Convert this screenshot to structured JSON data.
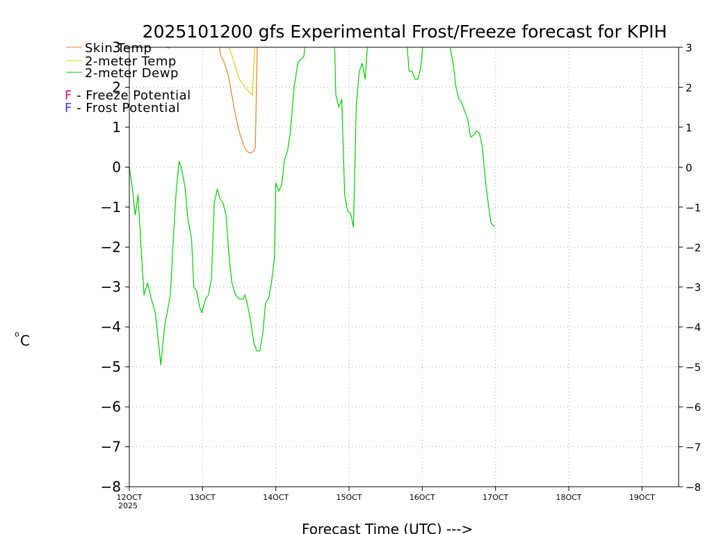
{
  "chart_data": {
    "type": "line",
    "title": "2025101200 gfs Experimental Frost/Freeze forecast for KPIH",
    "ylabel_prefix": "o",
    "ylabel": "C",
    "xlabel": "Forecast Time (UTC) --->",
    "ylim": [
      -8,
      3
    ],
    "xlim": [
      12,
      19.5
    ],
    "y_ticks_left": [
      "−8",
      "−7",
      "−6",
      "−5",
      "−4",
      "−3",
      "−2",
      "−1",
      "0",
      "1",
      "2",
      "3"
    ],
    "y_ticks_right": [
      "−8",
      "−7",
      "−6",
      "−5",
      "−4",
      "−3",
      "−2",
      "−1",
      "0",
      "1",
      "2",
      "3"
    ],
    "x_ticks": [
      {
        "x": 12,
        "label": "12OCT"
      },
      {
        "x": 13,
        "label": "13OCT"
      },
      {
        "x": 14,
        "label": "14OCT"
      },
      {
        "x": 15,
        "label": "15OCT"
      },
      {
        "x": 16,
        "label": "16OCT"
      },
      {
        "x": 17,
        "label": "17OCT"
      },
      {
        "x": 18,
        "label": "18OCT"
      },
      {
        "x": 19,
        "label": "19OCT"
      }
    ],
    "year_label": "2025",
    "legend": [
      {
        "name": "Skin Temp",
        "color": "#e8802a"
      },
      {
        "name": "2-meter Temp",
        "color": "#e8c800"
      },
      {
        "name": "2-meter Dewp",
        "color": "#00cc00"
      }
    ],
    "potential_legend": [
      {
        "marker": "F",
        "text": " - Freeze Potential",
        "color": "#c8148c"
      },
      {
        "marker": "F",
        "text": " - Frost Potential",
        "color": "#3c3cdc"
      }
    ],
    "series": [
      {
        "name": "Skin Temp",
        "color": "#e8802a",
        "points": [
          [
            12.45,
            3.3
          ],
          [
            12.5,
            3.0
          ],
          [
            12.55,
            2.98
          ],
          [
            12.6,
            3.3
          ],
          [
            13.2,
            3.3
          ],
          [
            13.25,
            2.8
          ],
          [
            13.3,
            2.6
          ],
          [
            13.35,
            2.3
          ],
          [
            13.4,
            1.8
          ],
          [
            13.45,
            1.3
          ],
          [
            13.5,
            0.9
          ],
          [
            13.55,
            0.6
          ],
          [
            13.6,
            0.4
          ],
          [
            13.65,
            0.35
          ],
          [
            13.7,
            0.4
          ],
          [
            13.72,
            0.5
          ],
          [
            13.75,
            3.3
          ]
        ]
      },
      {
        "name": "2-meter Temp",
        "color": "#e8c800",
        "points": [
          [
            13.3,
            3.3
          ],
          [
            13.4,
            2.8
          ],
          [
            13.5,
            2.2
          ],
          [
            13.6,
            1.95
          ],
          [
            13.68,
            1.8
          ],
          [
            13.72,
            3.3
          ]
        ]
      },
      {
        "name": "2-meter Dewp",
        "color": "#00cc00",
        "points": [
          [
            12,
            0
          ],
          [
            12.04,
            -0.5
          ],
          [
            12.08,
            -1.2
          ],
          [
            12.12,
            -0.7
          ],
          [
            12.16,
            -2.0
          ],
          [
            12.2,
            -3.2
          ],
          [
            12.25,
            -2.9
          ],
          [
            12.3,
            -3.3
          ],
          [
            12.35,
            -3.6
          ],
          [
            12.4,
            -4.4
          ],
          [
            12.43,
            -4.95
          ],
          [
            12.48,
            -4.0
          ],
          [
            12.52,
            -3.6
          ],
          [
            12.56,
            -3.2
          ],
          [
            12.6,
            -1.8
          ],
          [
            12.64,
            -0.6
          ],
          [
            12.68,
            0.15
          ],
          [
            12.72,
            -0.1
          ],
          [
            12.76,
            -0.5
          ],
          [
            12.8,
            -1.3
          ],
          [
            12.85,
            -1.8
          ],
          [
            12.88,
            -3.0
          ],
          [
            12.92,
            -3.1
          ],
          [
            12.96,
            -3.5
          ],
          [
            12.99,
            -3.65
          ],
          [
            13.04,
            -3.3
          ],
          [
            13.08,
            -3.2
          ],
          [
            13.12,
            -2.8
          ],
          [
            13.16,
            -0.9
          ],
          [
            13.2,
            -0.55
          ],
          [
            13.24,
            -0.8
          ],
          [
            13.28,
            -0.9
          ],
          [
            13.32,
            -1.2
          ],
          [
            13.36,
            -2.2
          ],
          [
            13.4,
            -2.9
          ],
          [
            13.45,
            -3.2
          ],
          [
            13.5,
            -3.3
          ],
          [
            13.55,
            -3.3
          ],
          [
            13.58,
            -3.2
          ],
          [
            13.62,
            -3.5
          ],
          [
            13.66,
            -3.9
          ],
          [
            13.7,
            -4.4
          ],
          [
            13.74,
            -4.6
          ],
          [
            13.78,
            -4.6
          ],
          [
            13.82,
            -4.2
          ],
          [
            13.86,
            -3.4
          ],
          [
            13.9,
            -3.3
          ],
          [
            13.94,
            -2.9
          ],
          [
            13.98,
            -2.3
          ],
          [
            14.0,
            -0.4
          ],
          [
            14.04,
            -0.6
          ],
          [
            14.08,
            -0.45
          ],
          [
            14.12,
            0.2
          ],
          [
            14.16,
            0.4
          ],
          [
            14.2,
            0.9
          ],
          [
            14.25,
            2.0
          ],
          [
            14.3,
            2.6
          ],
          [
            14.34,
            2.7
          ],
          [
            14.38,
            2.75
          ],
          [
            14.42,
            3.3
          ],
          [
            14.8,
            3.3
          ],
          [
            14.82,
            1.8
          ],
          [
            14.86,
            1.5
          ],
          [
            14.9,
            1.7
          ],
          [
            14.94,
            -0.7
          ],
          [
            14.98,
            -1.1
          ],
          [
            15.02,
            -1.15
          ],
          [
            15.06,
            -1.5
          ],
          [
            15.1,
            1.6
          ],
          [
            15.14,
            2.4
          ],
          [
            15.18,
            2.6
          ],
          [
            15.22,
            2.2
          ],
          [
            15.26,
            3.3
          ],
          [
            15.78,
            3.3
          ],
          [
            15.82,
            2.4
          ],
          [
            15.86,
            2.4
          ],
          [
            15.9,
            2.2
          ],
          [
            15.94,
            2.2
          ],
          [
            15.98,
            2.5
          ],
          [
            16.02,
            3.3
          ],
          [
            16.34,
            3.3
          ],
          [
            16.38,
            3.0
          ],
          [
            16.42,
            2.6
          ],
          [
            16.46,
            2.0
          ],
          [
            16.5,
            1.7
          ],
          [
            16.54,
            1.6
          ],
          [
            16.58,
            1.4
          ],
          [
            16.62,
            1.2
          ],
          [
            16.66,
            0.75
          ],
          [
            16.7,
            0.8
          ],
          [
            16.74,
            0.9
          ],
          [
            16.78,
            0.85
          ],
          [
            16.82,
            0.5
          ],
          [
            16.86,
            -0.3
          ],
          [
            16.9,
            -0.9
          ],
          [
            16.94,
            -1.4
          ],
          [
            16.99,
            -1.5
          ]
        ]
      }
    ]
  }
}
